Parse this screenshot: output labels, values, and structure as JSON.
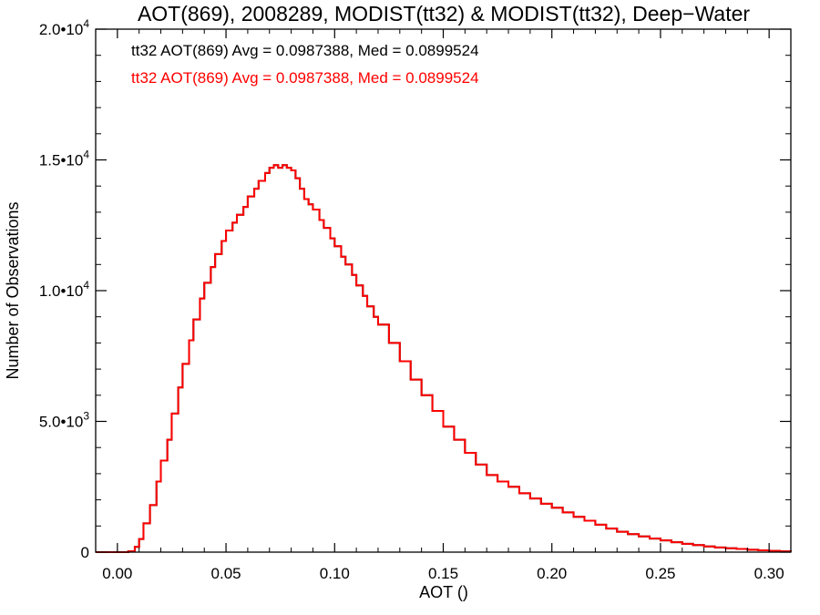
{
  "chart_data": {
    "type": "line",
    "step": true,
    "title": "AOT(869), 2008289, MODIST(tt32) & MODIST(tt32), Deep−Water",
    "xlabel": "AOT ()",
    "ylabel": "Number of Observations",
    "xlim": [
      -0.01,
      0.31
    ],
    "ylim": [
      0,
      20000
    ],
    "x_ticks": [
      {
        "value": 0.0,
        "label": "0.00"
      },
      {
        "value": 0.05,
        "label": "0.05"
      },
      {
        "value": 0.1,
        "label": "0.10"
      },
      {
        "value": 0.15,
        "label": "0.15"
      },
      {
        "value": 0.2,
        "label": "0.20"
      },
      {
        "value": 0.25,
        "label": "0.25"
      },
      {
        "value": 0.3,
        "label": "0.30"
      }
    ],
    "y_ticks": [
      {
        "value": 0,
        "base": "0",
        "exp": ""
      },
      {
        "value": 5000,
        "base": "5.0•10",
        "exp": "3"
      },
      {
        "value": 10000,
        "base": "1.0•10",
        "exp": "4"
      },
      {
        "value": 15000,
        "base": "1.5•10",
        "exp": "4"
      },
      {
        "value": 20000,
        "base": "2.0•10",
        "exp": "4"
      }
    ],
    "annotations": [
      {
        "text": "tt32 AOT(869) Avg = 0.0987388, Med = 0.0899524",
        "color": "#000000"
      },
      {
        "text": "tt32 AOT(869) Avg = 0.0987388, Med = 0.0899524",
        "color": "#ff0000"
      }
    ],
    "series": [
      {
        "color": "#000000",
        "x": [
          -0.01,
          0.0,
          0.005,
          0.008,
          0.01,
          0.012,
          0.015,
          0.018,
          0.02,
          0.023,
          0.025,
          0.028,
          0.03,
          0.033,
          0.035,
          0.038,
          0.04,
          0.043,
          0.045,
          0.048,
          0.05,
          0.053,
          0.055,
          0.058,
          0.06,
          0.063,
          0.065,
          0.068,
          0.07,
          0.072,
          0.074,
          0.076,
          0.078,
          0.08,
          0.082,
          0.084,
          0.086,
          0.088,
          0.09,
          0.093,
          0.095,
          0.098,
          0.1,
          0.103,
          0.105,
          0.108,
          0.11,
          0.113,
          0.115,
          0.118,
          0.12,
          0.125,
          0.13,
          0.135,
          0.14,
          0.145,
          0.15,
          0.155,
          0.16,
          0.165,
          0.17,
          0.175,
          0.18,
          0.185,
          0.19,
          0.195,
          0.2,
          0.205,
          0.21,
          0.215,
          0.22,
          0.225,
          0.23,
          0.235,
          0.24,
          0.245,
          0.25,
          0.255,
          0.26,
          0.265,
          0.27,
          0.275,
          0.28,
          0.285,
          0.29,
          0.295,
          0.3,
          0.305,
          0.31
        ],
        "values": [
          0,
          0,
          30,
          200,
          500,
          1100,
          1800,
          2700,
          3500,
          4300,
          5300,
          6300,
          7200,
          8100,
          8900,
          9700,
          10300,
          10900,
          11400,
          11900,
          12300,
          12600,
          12900,
          13200,
          13600,
          13900,
          14200,
          14500,
          14700,
          14800,
          14700,
          14800,
          14700,
          14600,
          14300,
          13900,
          13500,
          13300,
          13100,
          12700,
          12400,
          12000,
          11700,
          11300,
          11000,
          10600,
          10200,
          9800,
          9400,
          9000,
          8700,
          8000,
          7300,
          6600,
          6000,
          5400,
          4800,
          4300,
          3800,
          3350,
          2950,
          2700,
          2500,
          2250,
          2050,
          1850,
          1700,
          1520,
          1350,
          1200,
          1050,
          900,
          780,
          690,
          600,
          520,
          450,
          380,
          320,
          270,
          220,
          180,
          150,
          120,
          90,
          70,
          50,
          30,
          20
        ]
      },
      {
        "color": "#ff0000",
        "x": [
          -0.01,
          0.0,
          0.005,
          0.008,
          0.01,
          0.012,
          0.015,
          0.018,
          0.02,
          0.023,
          0.025,
          0.028,
          0.03,
          0.033,
          0.035,
          0.038,
          0.04,
          0.043,
          0.045,
          0.048,
          0.05,
          0.053,
          0.055,
          0.058,
          0.06,
          0.063,
          0.065,
          0.068,
          0.07,
          0.072,
          0.074,
          0.076,
          0.078,
          0.08,
          0.082,
          0.084,
          0.086,
          0.088,
          0.09,
          0.093,
          0.095,
          0.098,
          0.1,
          0.103,
          0.105,
          0.108,
          0.11,
          0.113,
          0.115,
          0.118,
          0.12,
          0.125,
          0.13,
          0.135,
          0.14,
          0.145,
          0.15,
          0.155,
          0.16,
          0.165,
          0.17,
          0.175,
          0.18,
          0.185,
          0.19,
          0.195,
          0.2,
          0.205,
          0.21,
          0.215,
          0.22,
          0.225,
          0.23,
          0.235,
          0.24,
          0.245,
          0.25,
          0.255,
          0.26,
          0.265,
          0.27,
          0.275,
          0.28,
          0.285,
          0.29,
          0.295,
          0.3,
          0.305,
          0.31
        ],
        "values": [
          0,
          0,
          30,
          200,
          500,
          1100,
          1800,
          2700,
          3500,
          4300,
          5300,
          6300,
          7200,
          8100,
          8900,
          9700,
          10300,
          10900,
          11400,
          11900,
          12300,
          12600,
          12900,
          13200,
          13600,
          13900,
          14200,
          14500,
          14700,
          14800,
          14700,
          14800,
          14700,
          14600,
          14300,
          13900,
          13500,
          13300,
          13100,
          12700,
          12400,
          12000,
          11700,
          11300,
          11000,
          10600,
          10200,
          9800,
          9400,
          9000,
          8700,
          8000,
          7300,
          6600,
          6000,
          5400,
          4800,
          4300,
          3800,
          3350,
          2950,
          2700,
          2500,
          2250,
          2050,
          1850,
          1700,
          1520,
          1350,
          1200,
          1050,
          900,
          780,
          690,
          600,
          520,
          450,
          380,
          320,
          270,
          220,
          180,
          150,
          120,
          90,
          70,
          50,
          30,
          20
        ]
      }
    ]
  }
}
